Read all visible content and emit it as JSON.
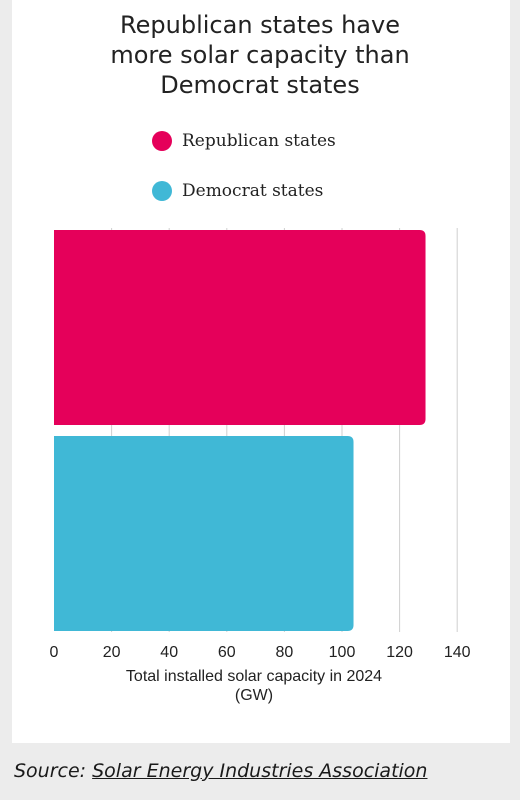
{
  "chart_data": {
    "type": "bar",
    "orientation": "horizontal",
    "title_lines": [
      "Republican states have",
      "more solar capacity than",
      "Democrat states"
    ],
    "categories": [
      "Republican states",
      "Democrat states"
    ],
    "values": [
      129,
      104
    ],
    "colors": [
      "#e5005a",
      "#40b8d6"
    ],
    "xlabel_lines": [
      "Total installed solar capacity in 2024",
      "(GW)"
    ],
    "xlim": [
      0,
      140
    ],
    "xticks": [
      0,
      20,
      40,
      60,
      80,
      100,
      120,
      140
    ],
    "grid": true,
    "legend_position": "top-left"
  },
  "source": {
    "prefix": "Source: ",
    "link_text": "Solar Energy Industries Association"
  }
}
